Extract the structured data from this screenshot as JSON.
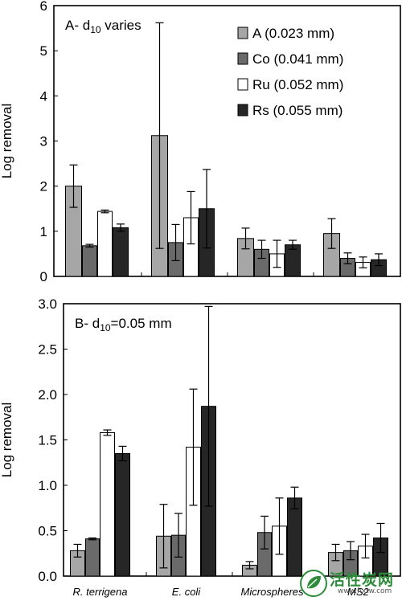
{
  "colors": {
    "A": "#a6a6a6",
    "Co": "#6a6a6a",
    "Ru": "#ffffff",
    "Rs": "#262626",
    "axis": "#000000",
    "watermark_green": "#2e8b3a"
  },
  "chart_data": [
    {
      "type": "bar",
      "panel_label": "A- d10 varies",
      "panel_label_main": "A- d",
      "panel_label_sub": "10",
      "panel_label_rest": " varies",
      "ylabel": "Log removal",
      "xlabel": "",
      "ylim": [
        0,
        6
      ],
      "yticks": [
        "0",
        "1",
        "2",
        "3",
        "4",
        "5",
        "6"
      ],
      "legend_position": "top-right",
      "categories": [
        "R. terrigena",
        "E. coli",
        "Microspheres",
        "MS2"
      ],
      "series": [
        {
          "name": "A (0.023 mm)",
          "key": "A",
          "values": [
            2.0,
            3.12,
            0.84,
            0.95
          ],
          "errors": [
            0.47,
            2.5,
            0.23,
            0.33
          ]
        },
        {
          "name": "Co (0.041 mm)",
          "key": "Co",
          "values": [
            0.68,
            0.75,
            0.6,
            0.4
          ],
          "errors": [
            0.03,
            0.4,
            0.2,
            0.12
          ]
        },
        {
          "name": "Ru (0.052 mm)",
          "key": "Ru",
          "values": [
            1.44,
            1.3,
            0.5,
            0.31
          ],
          "errors": [
            0.03,
            0.58,
            0.3,
            0.12
          ]
        },
        {
          "name": "Rs (0.055 mm)",
          "key": "Rs",
          "values": [
            1.08,
            1.5,
            0.7,
            0.37
          ],
          "errors": [
            0.08,
            0.87,
            0.1,
            0.13
          ]
        }
      ]
    },
    {
      "type": "bar",
      "panel_label": "B- d10=0.05 mm",
      "panel_label_main": "B- d",
      "panel_label_sub": "10",
      "panel_label_rest": "=0.05 mm",
      "ylabel": "Log removal",
      "xlabel": "",
      "ylim": [
        0,
        3
      ],
      "yticks": [
        "0.0",
        "0.5",
        "1.0",
        "1.5",
        "2.0",
        "2.5",
        "3.0"
      ],
      "categories": [
        "R. terrigena",
        "E. coli",
        "Microspheres",
        "MS2"
      ],
      "series": [
        {
          "key": "A",
          "values": [
            0.28,
            0.44,
            0.12,
            0.26
          ],
          "errors": [
            0.07,
            0.35,
            0.04,
            0.09
          ]
        },
        {
          "key": "Co",
          "values": [
            0.41,
            0.45,
            0.48,
            0.28
          ],
          "errors": [
            0.01,
            0.24,
            0.18,
            0.1
          ]
        },
        {
          "key": "Ru",
          "values": [
            1.58,
            1.42,
            0.55,
            0.33
          ],
          "errors": [
            0.03,
            0.64,
            0.31,
            0.13
          ]
        },
        {
          "key": "Rs",
          "values": [
            1.35,
            1.87,
            0.86,
            0.42
          ],
          "errors": [
            0.08,
            1.1,
            0.12,
            0.16
          ]
        }
      ]
    }
  ],
  "watermark": {
    "text": "活性炭网",
    "url": "www.hxtw.com"
  }
}
